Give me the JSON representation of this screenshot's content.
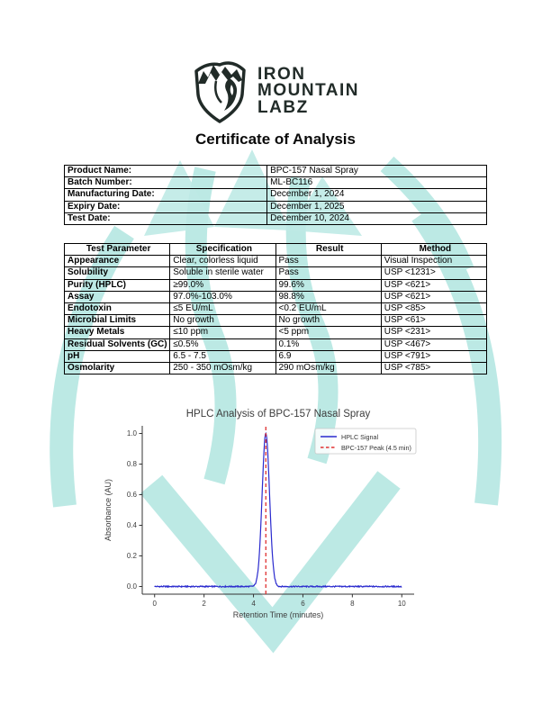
{
  "header": {
    "brand_lines": [
      "IRON",
      "MOUNTAIN",
      "LABZ"
    ],
    "logo_name": "iron-mountain-labz-emblem",
    "title": "Certificate of Analysis"
  },
  "product_info": {
    "rows": [
      {
        "label": "Product Name:",
        "value": "BPC-157 Nasal Spray"
      },
      {
        "label": "Batch Number:",
        "value": "ML-BC116"
      },
      {
        "label": "Manufacturing Date:",
        "value": "December 1, 2024"
      },
      {
        "label": "Expiry Date:",
        "value": "December 1, 2025"
      },
      {
        "label": "Test Date:",
        "value": "December 10, 2024"
      }
    ]
  },
  "test_results": {
    "headers": [
      "Test Parameter",
      "Specification",
      "Result",
      "Method"
    ],
    "rows": [
      [
        "Appearance",
        "Clear, colorless liquid",
        "Pass",
        "Visual Inspection"
      ],
      [
        "Solubility",
        "Soluble in sterile water",
        "Pass",
        "USP <1231>"
      ],
      [
        "Purity (HPLC)",
        "≥99.0%",
        "99.6%",
        "USP <621>"
      ],
      [
        "Assay",
        "97.0%-103.0%",
        "98.8%",
        "USP <621>"
      ],
      [
        "Endotoxin",
        "≤5 EU/mL",
        "<0.2 EU/mL",
        "USP <85>"
      ],
      [
        "Microbial Limits",
        "No growth",
        "No growth",
        "USP <61>"
      ],
      [
        "Heavy Metals",
        "≤10 ppm",
        "<5 ppm",
        "USP <231>"
      ],
      [
        "Residual Solvents (GC)",
        "≤0.5%",
        "0.1%",
        "USP <467>"
      ],
      [
        "pH",
        "6.5 - 7.5",
        "6.9",
        "USP <791>"
      ],
      [
        "Osmolarity",
        "250 - 350 mOsm/kg",
        "290 mOsm/kg",
        "USP <785>"
      ]
    ]
  },
  "chart_data": {
    "type": "line",
    "title": "HPLC Analysis of BPC-157 Nasal Spray",
    "xlabel": "Retention Time (minutes)",
    "ylabel": "Absorbance (AU)",
    "xlim": [
      -0.5,
      10.5
    ],
    "ylim": [
      -0.05,
      1.05
    ],
    "x_ticks": [
      0,
      2,
      4,
      6,
      8,
      10
    ],
    "y_ticks": [
      0.0,
      0.2,
      0.4,
      0.6,
      0.8,
      1.0
    ],
    "grid": false,
    "legend_position": "upper right",
    "series": [
      {
        "name": "HPLC Signal",
        "color": "#2a2ace",
        "style": "solid",
        "model": "gaussian-peak-with-noise",
        "x_range": [
          0,
          10
        ],
        "baseline": 0.0,
        "noise_amplitude": 0.004,
        "peak_center": 4.5,
        "peak_height": 1.0,
        "peak_sigma": 0.15
      }
    ],
    "annotations": [
      {
        "name": "BPC-157 Peak (4.5 min)",
        "type": "vline",
        "x": 4.5,
        "color": "#e03131",
        "style": "dashed"
      }
    ]
  },
  "watermark": {
    "name": "iron-mountain-labz-shield-watermark",
    "color": "#b5e7e2"
  }
}
